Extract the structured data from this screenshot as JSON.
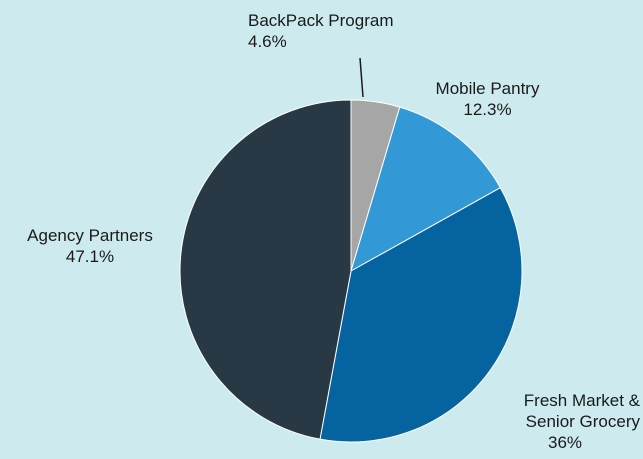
{
  "chart_data": {
    "type": "pie",
    "categories": [
      "BackPack Program",
      "Mobile Pantry",
      "Fresh Market & Senior Grocery",
      "Agency Partners"
    ],
    "values": [
      4.6,
      12.3,
      36,
      47.1
    ],
    "value_labels": [
      "4.6%",
      "12.3%",
      "36%",
      "47.1%"
    ],
    "colors": [
      "#a6a6a6",
      "#3399d6",
      "#0563a0",
      "#283845"
    ]
  }
}
